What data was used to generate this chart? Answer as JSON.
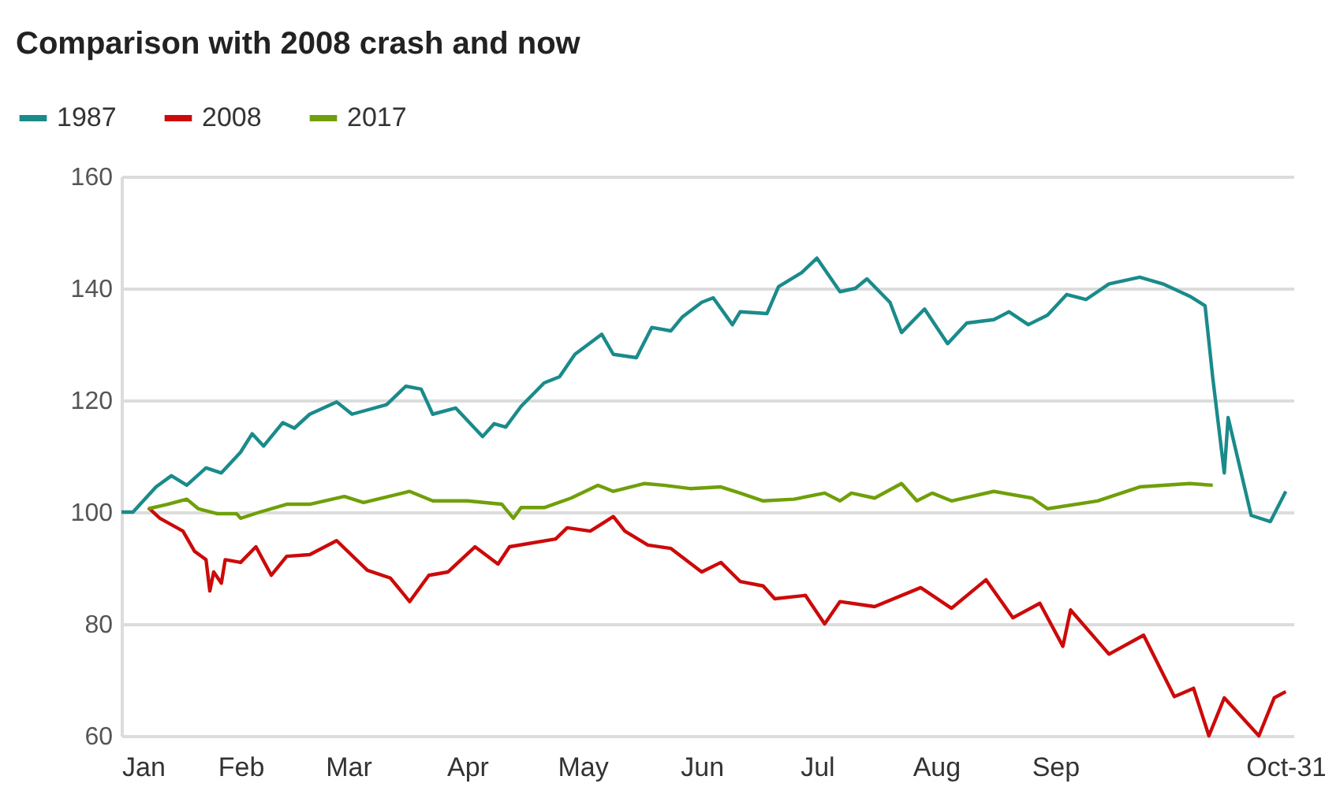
{
  "chart_data": {
    "type": "line",
    "title": "Comparison with 2008 crash and now",
    "x": [
      "--01-01",
      "--01-04",
      "--01-10",
      "--01-14",
      "--01-18",
      "--01-23",
      "--01-27",
      "--02-01",
      "--02-04",
      "--02-07",
      "--02-12",
      "--02-15",
      "--02-19",
      "--02-26",
      "--03-02",
      "--03-11",
      "--03-16",
      "--03-20",
      "--03-23",
      "--03-29",
      "--04-05",
      "--04-08",
      "--04-11",
      "--04-15",
      "--04-21",
      "--04-25",
      "--04-29",
      "--05-06",
      "--05-09",
      "--05-15",
      "--05-19",
      "--05-24",
      "--05-27",
      "--06-01",
      "--06-04",
      "--06-09",
      "--06-11",
      "--06-18",
      "--06-21",
      "--06-27",
      "--07-01",
      "--07-07",
      "--07-11",
      "--07-14",
      "--07-20",
      "--07-23",
      "--07-29",
      "--08-04",
      "--08-09",
      "--08-16",
      "--08-20",
      "--08-25",
      "--08-30",
      "--09-04",
      "--09-09",
      "--09-15",
      "--09-23",
      "--09-29",
      "--10-06",
      "--10-10",
      "--10-12",
      "--10-15",
      "--10-16",
      "--10-22",
      "--10-27",
      "--10-31"
    ],
    "series": [
      {
        "name": "1987",
        "color": "#1a8a8a",
        "values": [
          100,
          100,
          104.5,
          106.5,
          104.8,
          107.9,
          107,
          110.7,
          114,
          111.8,
          116,
          115,
          117.5,
          119.7,
          117.5,
          119.2,
          122.5,
          122,
          117.5,
          118.6,
          113.5,
          115.8,
          115.2,
          118.9,
          123.1,
          124.2,
          128.2,
          131.8,
          128.2,
          127.6,
          133,
          132.4,
          134.9,
          137.5,
          138.3,
          133.5,
          135.8,
          135.5,
          140.3,
          142.8,
          145.4,
          139.4,
          140,
          141.7,
          137.5,
          132.1,
          136.3,
          130.1,
          133.8,
          134.4,
          135.8,
          133.5,
          135.2,
          138.9,
          138,
          140.8,
          142,
          140.8,
          138.6,
          136.9,
          124,
          107,
          116.9,
          99.4,
          98.3,
          103.7
        ]
      },
      {
        "name": "2008",
        "color": "#cc0a0a",
        "x": [
          "--01-08",
          "--01-11",
          "--01-17",
          "--01-20",
          "--01-23",
          "--01-24",
          "--01-25",
          "--01-27",
          "--01-28",
          "--02-01",
          "--02-05",
          "--02-09",
          "--02-13",
          "--02-19",
          "--02-26",
          "--03-06",
          "--03-12",
          "--03-17",
          "--03-22",
          "--03-27",
          "--04-03",
          "--04-09",
          "--04-12",
          "--04-24",
          "--04-27",
          "--05-03",
          "--05-09",
          "--05-12",
          "--05-18",
          "--05-24",
          "--06-01",
          "--06-06",
          "--06-11",
          "--06-17",
          "--06-20",
          "--06-28",
          "--07-03",
          "--07-07",
          "--07-16",
          "--07-28",
          "--08-05",
          "--08-14",
          "--08-21",
          "--08-28",
          "--09-03",
          "--09-05",
          "--09-15",
          "--09-24",
          "--10-02",
          "--10-07",
          "--10-11",
          "--10-15",
          "--10-24",
          "--10-28",
          "--10-31"
        ],
        "values": [
          100.8,
          98.9,
          96.6,
          93,
          91.5,
          85.9,
          89.3,
          87.3,
          91.5,
          91,
          93.8,
          88.7,
          92.1,
          92.4,
          94.9,
          89.6,
          88.2,
          84,
          88.7,
          89.3,
          93.8,
          90.7,
          93.8,
          95.2,
          97.2,
          96.6,
          99.2,
          96.6,
          94.1,
          93.5,
          89.3,
          91,
          87.6,
          86.8,
          84.5,
          85.1,
          80,
          84,
          83.1,
          86.5,
          82.8,
          87.9,
          81.1,
          83.7,
          76,
          82.5,
          74.6,
          78,
          67,
          68.5,
          60,
          66.8,
          60,
          66.8,
          67.9
        ]
      },
      {
        "name": "2017",
        "color": "#6fa00a",
        "x": [
          "--01-08",
          "--01-13",
          "--01-18",
          "--01-21",
          "--01-26",
          "--01-31",
          "--02-01",
          "--02-06",
          "--02-13",
          "--02-19",
          "--02-28",
          "--03-05",
          "--03-17",
          "--03-23",
          "--04-01",
          "--04-10",
          "--04-13",
          "--04-15",
          "--04-21",
          "--04-28",
          "--05-05",
          "--05-09",
          "--05-17",
          "--05-22",
          "--05-29",
          "--06-06",
          "--06-11",
          "--06-17",
          "--06-25",
          "--07-03",
          "--07-07",
          "--07-10",
          "--07-16",
          "--07-23",
          "--07-27",
          "--07-31",
          "--08-05",
          "--08-16",
          "--08-26",
          "--08-30",
          "--09-12",
          "--09-23",
          "--10-06",
          "--10-12"
        ],
        "values": [
          100.6,
          101.4,
          102.3,
          100.6,
          99.7,
          99.7,
          98.9,
          100,
          101.4,
          101.4,
          102.8,
          101.7,
          103.7,
          102,
          102,
          101.4,
          98.9,
          100.8,
          100.8,
          102.5,
          104.8,
          103.7,
          105.1,
          104.8,
          104.2,
          104.5,
          103.4,
          102,
          102.3,
          103.4,
          102,
          103.4,
          102.5,
          105.1,
          102,
          103.4,
          102,
          103.7,
          102.5,
          100.6,
          102,
          104.5,
          105.1,
          104.8
        ]
      }
    ],
    "xlim": [
      "--01-01",
      "--11-02"
    ],
    "xticks": [
      {
        "value": "--01-01",
        "label": "Jan"
      },
      {
        "value": "--02-01",
        "label": "Feb"
      },
      {
        "value": "--03-01",
        "label": "Mar"
      },
      {
        "value": "--04-01",
        "label": "Apr"
      },
      {
        "value": "--05-01",
        "label": "May"
      },
      {
        "value": "--06-01",
        "label": "Jun"
      },
      {
        "value": "--07-01",
        "label": "Jul"
      },
      {
        "value": "--08-01",
        "label": "Aug"
      },
      {
        "value": "--09-01",
        "label": "Sep"
      },
      {
        "value": "--10-31",
        "label": "Oct-31"
      }
    ],
    "ylim": [
      60,
      160
    ],
    "yticks": [
      60,
      80,
      100,
      120,
      140,
      160
    ],
    "grid": "y",
    "legend": "top left",
    "line_style": "solid"
  }
}
